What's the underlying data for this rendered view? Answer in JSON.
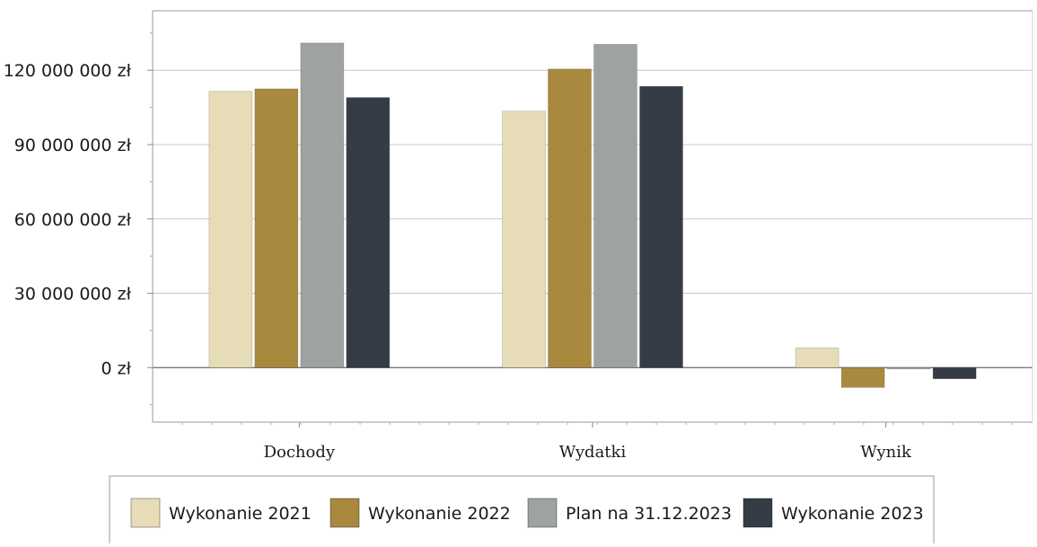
{
  "chart_data": {
    "type": "bar",
    "categories": [
      "Dochody",
      "Wydatki",
      "Wynik"
    ],
    "series": [
      {
        "name": "Wykonanie 2021",
        "values": [
          111500000,
          103500000,
          8000000
        ],
        "color": "#e6dcb8"
      },
      {
        "name": "Wykonanie 2022",
        "values": [
          112500000,
          120500000,
          -8000000
        ],
        "color": "#a8893e"
      },
      {
        "name": "Plan na 31.12.2023",
        "values": [
          131000000,
          130500000,
          -500000
        ],
        "color": "#9ea3a0"
      },
      {
        "name": "Wykonanie 2023",
        "values": [
          109000000,
          113500000,
          -4500000
        ],
        "color": "#353c46"
      }
    ],
    "ylim": [
      -22000000,
      144000000
    ],
    "yticks": [
      0,
      30000000,
      60000000,
      90000000,
      120000000
    ],
    "ytick_labels": [
      "0 zł",
      "30 000 000 zł",
      "60 000 000 zł",
      "90 000 000 zł",
      "120 000 000 zł"
    ],
    "grid": true,
    "legend_position": "bottom",
    "title": "",
    "xlabel": "",
    "ylabel": ""
  }
}
